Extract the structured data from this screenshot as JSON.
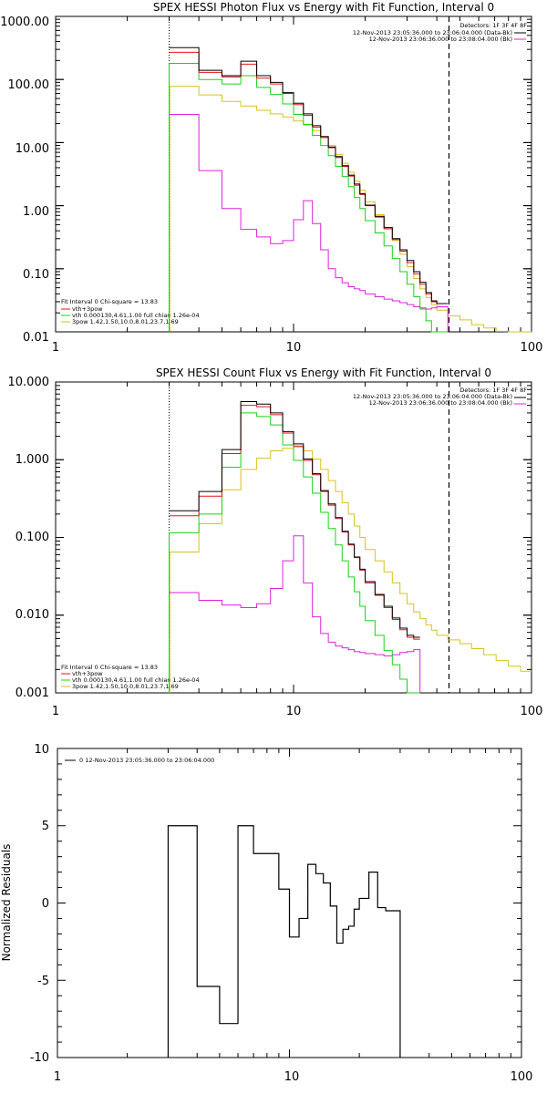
{
  "colors": {
    "data": "#000000",
    "model_total": "#e8121a",
    "vth": "#17d417",
    "3pow": "#d9c21a",
    "background": "#dd22dd",
    "fit_low_marker": "#d9c21a"
  },
  "chart_data": [
    {
      "type": "line",
      "step": true,
      "title": "SPEX HESSI Photon Flux vs Energy with Fit Function, Interval 0",
      "xlabel": "",
      "ylabel": "",
      "xscale": "log",
      "yscale": "log",
      "xlim": [
        1,
        100
      ],
      "ylim": [
        0.01,
        1000
      ],
      "x_tick_labels": [
        "1",
        "10",
        "100"
      ],
      "y_tick_labels": [
        "0.01",
        "0.10",
        "1.00",
        "10.00",
        "100.00",
        "1000.00"
      ],
      "fit_range": [
        3,
        45
      ],
      "edges": [
        3,
        4,
        5,
        6,
        7,
        8,
        9,
        10,
        11,
        12,
        13,
        14,
        15,
        16,
        17,
        18,
        19,
        20,
        22,
        24,
        26,
        28,
        30,
        32,
        34,
        36,
        38,
        40,
        44.5,
        50,
        56,
        63,
        71,
        80,
        90,
        100
      ],
      "legend_top_right": {
        "header": "Detectors: 1F 3F 4F 8F",
        "entries": [
          "12-Nov-2013 23:05:36.000 to 23:06:04.000 (Data-Bk)",
          "12-Nov-2013 23:06:36.000 to 23:08:04.000 (Bk)"
        ]
      },
      "legend_bottom_left": {
        "header": "Fit Interval  0    Chi-square = 13.83",
        "entries": [
          "vth+3pow",
          "vth 0.000130,4.61,1.00  full chian 1.26e-04",
          "3pow  1.42,1.50,10.0,8.01,23.7,1.69"
        ]
      },
      "series": [
        {
          "role": "data",
          "values": [
            320,
            140,
            115,
            195,
            115,
            90,
            62,
            42,
            28.5,
            18.5,
            12.5,
            8.5,
            6.0,
            4.3,
            3.05,
            2.2,
            1.55,
            1.02,
            0.68,
            0.45,
            0.3,
            0.2,
            0.135,
            0.09,
            0.061,
            0.042,
            0.031,
            0.028
          ]
        },
        {
          "role": "model_total",
          "values": [
            270,
            130,
            110,
            175,
            105,
            85,
            60,
            40,
            27,
            17.5,
            12,
            8.3,
            5.8,
            4.2,
            2.95,
            2.1,
            1.5,
            1.0,
            0.66,
            0.43,
            0.29,
            0.19,
            0.125,
            0.083,
            0.057,
            0.04,
            0.03,
            0.028
          ]
        },
        {
          "role": "vth",
          "values": [
            180,
            100,
            85,
            115,
            75,
            58,
            41,
            28,
            19.5,
            13,
            9,
            6.2,
            4.2,
            2.9,
            2.0,
            1.35,
            0.9,
            0.58,
            0.37,
            0.23,
            0.145,
            0.09,
            0.057,
            0.036,
            0.023,
            0.015,
            0.0095,
            0.0065
          ]
        },
        {
          "role": "3pow",
          "values": [
            78,
            57,
            45,
            38,
            32.5,
            28.5,
            25.5,
            22,
            19,
            15.5,
            12,
            9,
            6.5,
            4.7,
            3.4,
            2.45,
            1.75,
            1.15,
            0.72,
            0.45,
            0.28,
            0.17,
            0.108,
            0.07,
            0.048,
            0.035,
            0.027,
            0.022,
            0.018,
            0.0155,
            0.013,
            0.0115,
            0.0102,
            0.0092,
            0.0084
          ]
        },
        {
          "role": "background",
          "values": [
            28,
            3.6,
            0.9,
            0.42,
            0.32,
            0.25,
            0.28,
            0.6,
            1.2,
            0.52,
            0.2,
            0.1,
            0.072,
            0.06,
            0.052,
            0.048,
            0.045,
            0.04,
            0.036,
            0.033,
            0.031,
            0.029,
            0.027,
            0.025,
            0.024,
            0.023,
            0.024,
            0.025
          ]
        }
      ]
    },
    {
      "type": "line",
      "step": true,
      "title": "SPEX HESSI Count Flux vs Energy with Fit Function, Interval 0",
      "xlabel": "",
      "ylabel": "",
      "xscale": "log",
      "yscale": "log",
      "xlim": [
        1,
        100
      ],
      "ylim": [
        0.001,
        10
      ],
      "x_tick_labels": [
        "1",
        "10",
        "100"
      ],
      "y_tick_labels": [
        "0.001",
        "0.010",
        "0.100",
        "1.000",
        "10.000"
      ],
      "fit_range": [
        3,
        45
      ],
      "edges": [
        3,
        4,
        5,
        6,
        7,
        8,
        9,
        10,
        11,
        12,
        13,
        14,
        15,
        16,
        17,
        18,
        19,
        20,
        22,
        24,
        26,
        28,
        30,
        32,
        34,
        36,
        38,
        40,
        44.5,
        50,
        56,
        63,
        71,
        80,
        90,
        100
      ],
      "legend_top_right": {
        "header": "Detectors: 1F 3F 4F 8F",
        "entries": [
          "12-Nov-2013 23:05:36.000 to 23:06:04.000 (Data-Bk)",
          "12-Nov-2013 23:06:36.000 to 23:08:04.000 (Bk)"
        ]
      },
      "legend_bottom_left": {
        "header": "Fit Interval  0    Chi-square = 13.83",
        "entries": [
          "vth+3pow",
          "vth 0.000130,4.61,1.00  full chian 1.26e-04",
          "3pow  1.42,1.50,10.0,8.01,23.7,1.69"
        ]
      },
      "series": [
        {
          "role": "data",
          "values": [
            0.22,
            0.39,
            1.35,
            5.6,
            5.2,
            4.0,
            2.3,
            1.6,
            1.02,
            0.66,
            0.4,
            0.27,
            0.18,
            0.12,
            0.082,
            0.056,
            0.039,
            0.027,
            0.0185,
            0.013,
            0.0092,
            0.0068,
            0.0055,
            0.0052
          ]
        },
        {
          "role": "model_total",
          "values": [
            0.19,
            0.34,
            1.2,
            5.0,
            4.8,
            3.8,
            2.2,
            1.5,
            0.98,
            0.64,
            0.39,
            0.26,
            0.175,
            0.117,
            0.08,
            0.055,
            0.038,
            0.026,
            0.018,
            0.0125,
            0.0088,
            0.0065,
            0.0052,
            0.0049
          ]
        },
        {
          "role": "vth",
          "values": [
            0.115,
            0.2,
            0.8,
            4.0,
            3.6,
            2.8,
            1.55,
            0.98,
            0.6,
            0.37,
            0.21,
            0.13,
            0.08,
            0.05,
            0.031,
            0.02,
            0.013,
            0.0085,
            0.0055,
            0.0035,
            0.0023,
            0.0015,
            0.001,
            0.0007
          ]
        },
        {
          "role": "3pow",
          "values": [
            0.065,
            0.15,
            0.41,
            0.75,
            1.05,
            1.3,
            1.4,
            1.45,
            1.3,
            1.02,
            0.75,
            0.54,
            0.39,
            0.28,
            0.2,
            0.14,
            0.1,
            0.07,
            0.05,
            0.036,
            0.026,
            0.019,
            0.014,
            0.011,
            0.009,
            0.0075,
            0.0064,
            0.0055,
            0.0048,
            0.0043,
            0.0037,
            0.0031,
            0.0026,
            0.0022,
            0.0019
          ]
        },
        {
          "role": "background",
          "values": [
            0.0195,
            0.0155,
            0.0135,
            0.0125,
            0.014,
            0.022,
            0.05,
            0.105,
            0.026,
            0.0095,
            0.0058,
            0.0045,
            0.004,
            0.0038,
            0.0036,
            0.0034,
            0.0033,
            0.0032,
            0.0031,
            0.003,
            0.0031,
            0.0033,
            0.0034,
            0.0036
          ]
        }
      ]
    },
    {
      "type": "line",
      "step": true,
      "title": "",
      "xlabel": "",
      "ylabel": "Normalized Residuals",
      "xscale": "log",
      "yscale": "linear",
      "xlim": [
        1,
        100
      ],
      "ylim": [
        -10,
        10
      ],
      "x_tick_labels": [
        "1",
        "10",
        "100"
      ],
      "y_tick_labels": [
        "-10",
        "-5",
        "0",
        "5",
        "10"
      ],
      "legend": "0  12-Nov-2013 23:05:36.000 to 23:06:04.000",
      "edges": [
        3,
        4,
        5,
        6,
        7,
        8,
        9,
        10,
        11,
        12,
        13,
        14,
        15,
        16,
        17,
        18,
        19,
        20,
        22,
        24,
        26,
        28,
        30,
        32,
        34,
        36,
        38,
        40,
        44.5
      ],
      "series": [
        {
          "role": "residuals",
          "values": [
            5.0,
            -5.4,
            -7.8,
            5.0,
            3.2,
            3.2,
            0.9,
            -2.2,
            -1.0,
            2.5,
            1.9,
            1.3,
            -0.2,
            -2.6,
            -1.7,
            -1.5,
            -0.4,
            0.3,
            2.0,
            -0.3,
            -0.5,
            -0.5
          ]
        }
      ]
    }
  ]
}
